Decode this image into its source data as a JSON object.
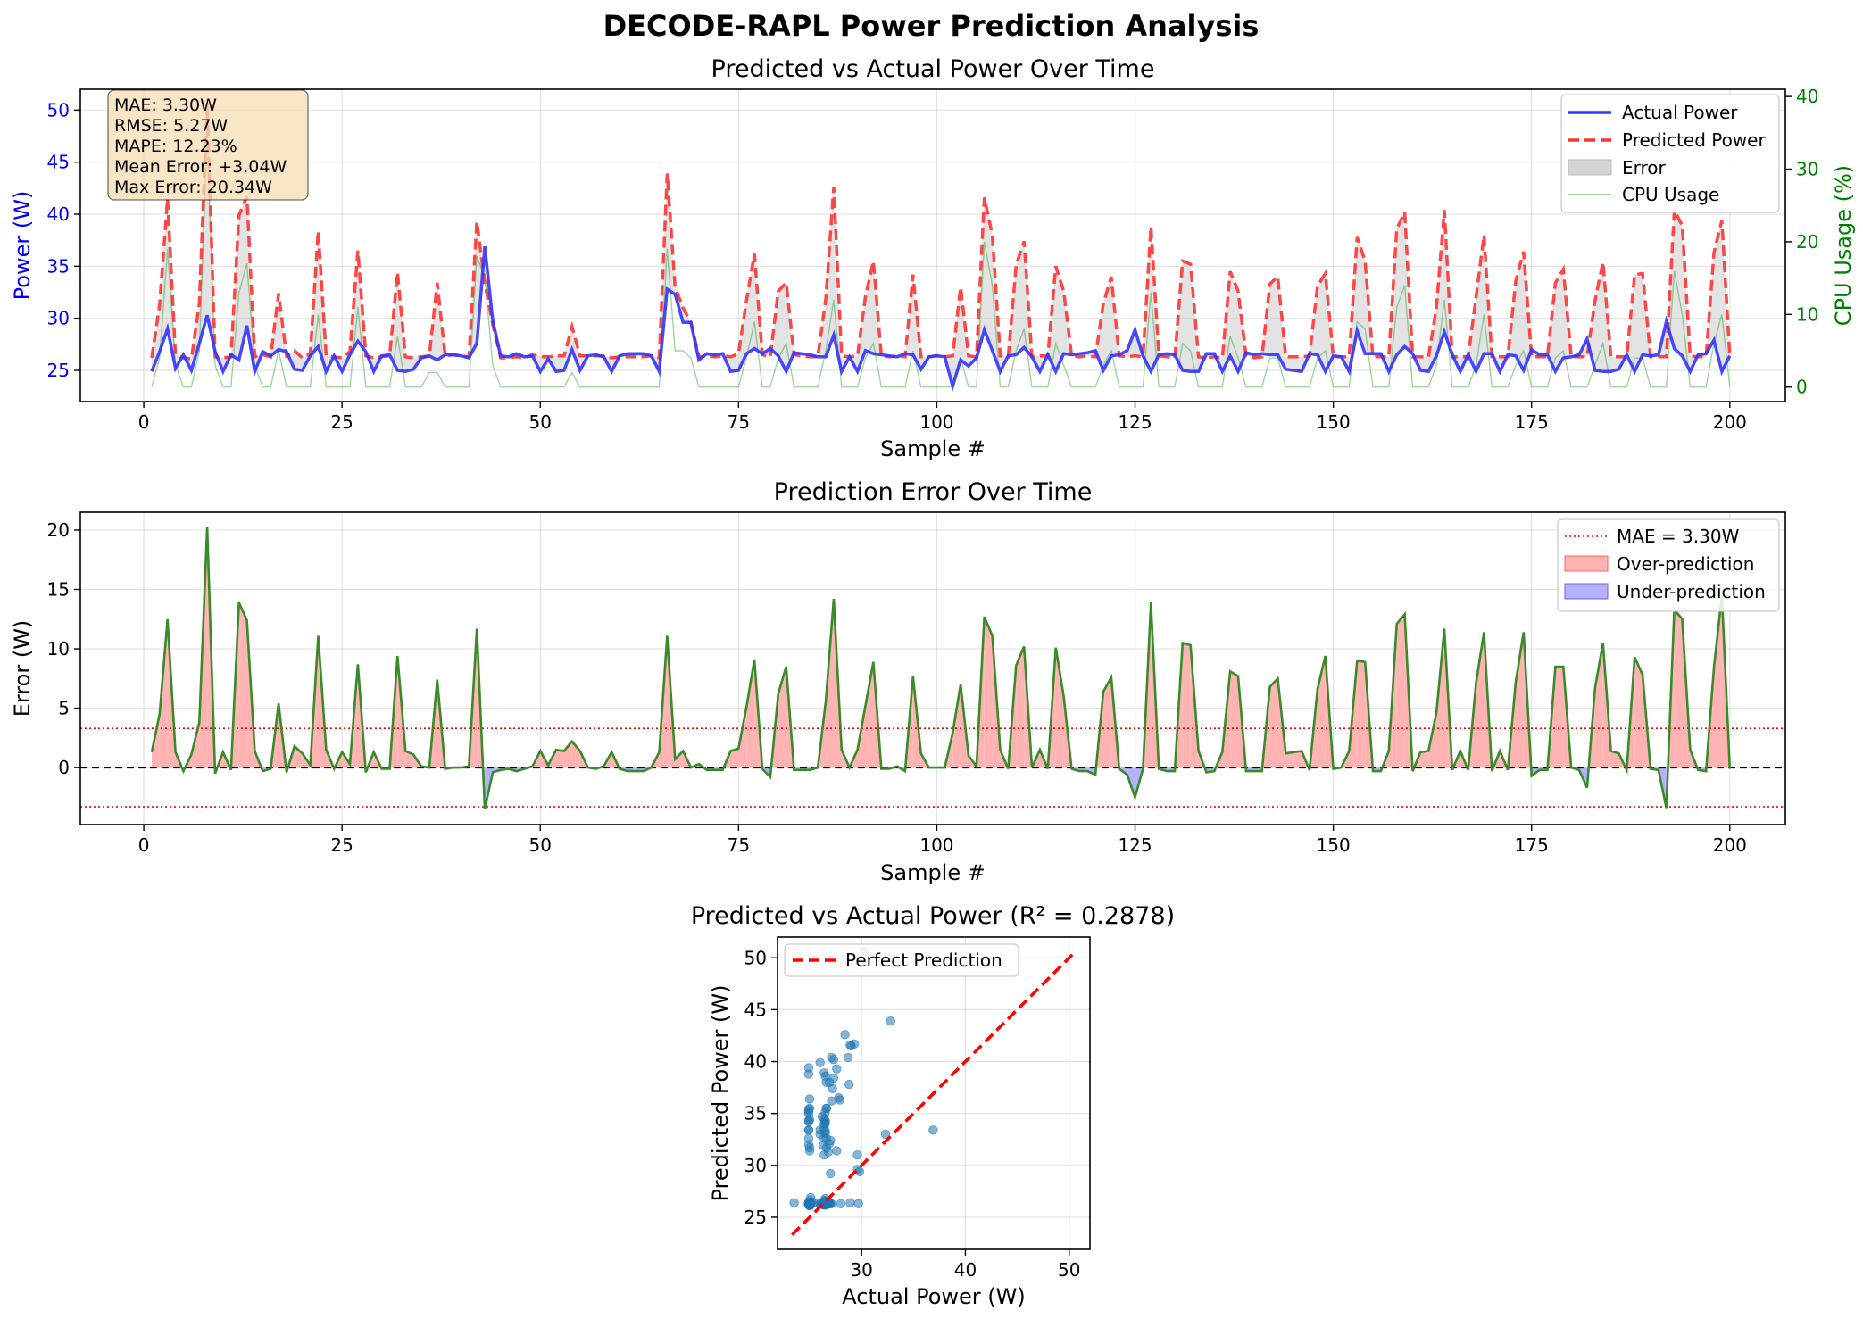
{
  "suptitle": "DECODE-RAPL Power Prediction Analysis",
  "colors": {
    "actual": "#3333ff",
    "predicted": "#ff3333",
    "cpu": "#2ca02c",
    "error_line": "#3a8a2a",
    "over_fill": "#ffb3b3",
    "under_fill": "#b3b3ff",
    "error_band": "#c8c8c8",
    "scatter": "#1f77b4",
    "stats_box": "#f5deb3",
    "left_axis": "#0000ff",
    "right_axis": "#008000"
  },
  "chart_data": [
    {
      "type": "line",
      "title": "Predicted vs Actual Power Over Time",
      "xlabel": "Sample #",
      "ylabel": "Power (W)",
      "y2label": "CPU Usage (%)",
      "xlim": [
        -8,
        207
      ],
      "ylim": [
        22,
        52
      ],
      "y2lim": [
        -2,
        41
      ],
      "xticks": [
        0,
        25,
        50,
        75,
        100,
        125,
        150,
        175,
        200
      ],
      "yticks": [
        25,
        30,
        35,
        40,
        45,
        50
      ],
      "y2ticks": [
        0,
        10,
        20,
        30,
        40
      ],
      "grid": true,
      "legend_position": "top-right",
      "legend": [
        "Actual Power",
        "Predicted Power",
        "Error",
        "CPU Usage"
      ],
      "stats_box": [
        "MAE: 3.30W",
        "RMSE: 5.27W",
        "MAPE: 12.23%",
        "Mean Error: +3.04W",
        "Max Error: 20.34W"
      ],
      "x_start": 1,
      "series": [
        {
          "name": "Actual Power",
          "values": [
            24.9,
            26.8,
            29.0,
            25.2,
            26.5,
            25.0,
            27.6,
            30.3,
            26.8,
            24.9,
            26.5,
            26.0,
            29.3,
            24.9,
            26.8,
            26.4,
            27.0,
            26.8,
            25.1,
            25.0,
            26.4,
            27.3,
            24.9,
            26.4,
            24.9,
            26.5,
            27.8,
            26.8,
            24.9,
            26.4,
            26.5,
            25.0,
            24.9,
            25.1,
            26.2,
            26.4,
            26.0,
            26.5,
            26.5,
            26.4,
            26.2,
            27.6,
            36.9,
            29.8,
            26.4,
            26.3,
            26.6,
            26.3,
            26.4,
            24.9,
            26.1,
            24.9,
            25.0,
            27.0,
            25.0,
            26.4,
            26.5,
            26.3,
            24.9,
            26.4,
            26.6,
            26.6,
            26.6,
            26.4,
            24.9,
            32.8,
            32.3,
            29.6,
            29.6,
            26.0,
            26.6,
            26.5,
            26.6,
            24.9,
            25.0,
            26.6,
            27.1,
            26.6,
            27.1,
            26.4,
            24.9,
            26.7,
            26.6,
            26.5,
            26.3,
            26.3,
            28.4,
            24.9,
            26.3,
            24.9,
            26.9,
            26.6,
            26.5,
            26.4,
            26.3,
            26.6,
            26.5,
            25.1,
            26.3,
            26.4,
            26.3,
            23.5,
            26.0,
            25.4,
            26.2,
            28.9,
            26.9,
            24.9,
            26.4,
            26.5,
            27.2,
            26.3,
            24.9,
            26.5,
            24.9,
            26.6,
            26.5,
            26.6,
            26.7,
            26.9,
            25.0,
            26.4,
            26.5,
            26.9,
            28.9,
            26.4,
            24.9,
            26.5,
            26.6,
            26.5,
            25.0,
            24.9,
            24.9,
            26.6,
            26.6,
            24.9,
            26.4,
            24.9,
            26.7,
            26.5,
            26.6,
            26.5,
            26.5,
            25.1,
            25.0,
            24.9,
            26.6,
            26.5,
            24.9,
            26.4,
            26.3,
            24.9,
            28.8,
            26.6,
            26.6,
            26.6,
            24.9,
            26.5,
            27.3,
            26.6,
            25.0,
            24.9,
            26.4,
            28.7,
            26.5,
            24.9,
            26.5,
            24.9,
            26.6,
            26.6,
            24.9,
            26.5,
            26.4,
            25.0,
            27.0,
            26.5,
            26.5,
            24.9,
            26.2,
            26.3,
            26.5,
            28.0,
            25.0,
            24.9,
            24.9,
            25.1,
            26.5,
            24.9,
            26.5,
            26.4,
            26.5,
            29.7,
            27.1,
            26.4,
            24.9,
            26.5,
            26.6,
            27.9,
            24.9,
            26.4
          ]
        },
        {
          "name": "Predicted Power",
          "values": [
            26.2,
            31.3,
            41.5,
            26.5,
            26.2,
            26.1,
            31.4,
            50.6,
            26.3,
            26.2,
            26.3,
            39.9,
            41.7,
            26.3,
            26.5,
            26.3,
            32.4,
            26.4,
            26.9,
            26.2,
            26.6,
            38.4,
            26.4,
            26.3,
            26.2,
            26.8,
            36.5,
            26.4,
            26.2,
            26.3,
            26.4,
            34.4,
            26.3,
            26.2,
            26.3,
            26.4,
            33.4,
            26.4,
            26.5,
            26.4,
            26.3,
            39.3,
            33.4,
            29.4,
            26.2,
            26.2,
            26.3,
            26.2,
            26.5,
            26.3,
            26.3,
            26.4,
            26.4,
            29.2,
            26.4,
            26.4,
            26.4,
            26.4,
            26.2,
            26.3,
            26.3,
            26.3,
            26.3,
            26.4,
            26.2,
            43.9,
            33.0,
            31.0,
            29.6,
            26.3,
            26.4,
            26.3,
            26.4,
            26.3,
            26.6,
            31.7,
            36.2,
            26.5,
            26.3,
            32.6,
            33.4,
            26.5,
            26.4,
            26.3,
            26.3,
            31.9,
            42.6,
            26.4,
            26.3,
            26.4,
            32.1,
            35.5,
            26.4,
            26.3,
            26.4,
            26.3,
            34.2,
            26.3,
            26.3,
            26.4,
            26.3,
            26.4,
            33.0,
            26.4,
            26.3,
            41.6,
            38.0,
            26.4,
            26.3,
            35.1,
            37.4,
            26.3,
            26.4,
            26.4,
            35.0,
            32.6,
            26.4,
            26.3,
            26.4,
            26.3,
            31.4,
            34.0,
            26.4,
            26.3,
            26.4,
            26.3,
            38.8,
            26.4,
            26.3,
            26.2,
            35.5,
            35.2,
            26.3,
            26.2,
            26.3,
            26.2,
            34.5,
            32.6,
            26.4,
            26.2,
            26.3,
            33.3,
            34.0,
            26.3,
            26.3,
            26.3,
            26.4,
            33.1,
            34.3,
            26.3,
            26.3,
            26.3,
            37.8,
            35.5,
            26.3,
            26.3,
            26.3,
            38.6,
            40.2,
            26.3,
            26.3,
            26.3,
            31.0,
            40.4,
            26.3,
            26.3,
            26.3,
            32.0,
            38.0,
            26.3,
            26.3,
            26.3,
            33.6,
            36.4,
            26.3,
            26.3,
            26.3,
            33.4,
            34.7,
            26.3,
            26.3,
            26.3,
            31.7,
            35.4,
            26.3,
            26.3,
            26.3,
            34.2,
            34.3,
            26.3,
            26.3,
            26.3,
            40.4,
            38.9,
            26.4,
            26.3,
            26.3,
            36.3,
            39.4,
            26.3
          ]
        },
        {
          "name": "CPU Usage",
          "axis": "right",
          "values": [
            0,
            4,
            19,
            3,
            0,
            0,
            5,
            35,
            3,
            0,
            0,
            13,
            17,
            3,
            0,
            0,
            5,
            0,
            0,
            0,
            0,
            10,
            0,
            0,
            0,
            0,
            11,
            0,
            0,
            0,
            0,
            7,
            0,
            0,
            0,
            2,
            2,
            0,
            0,
            0,
            0,
            18,
            15,
            3,
            0,
            0,
            0,
            0,
            0,
            0,
            0,
            0,
            0,
            2,
            0,
            0,
            0,
            0,
            0,
            0,
            0,
            0,
            0,
            0,
            0,
            19,
            5,
            5,
            4,
            0,
            0,
            0,
            0,
            0,
            0,
            4,
            9,
            0,
            0,
            4,
            6,
            0,
            0,
            0,
            0,
            5,
            12,
            0,
            0,
            0,
            4,
            6,
            0,
            0,
            0,
            0,
            5,
            0,
            0,
            0,
            0,
            0,
            4,
            0,
            0,
            20,
            14,
            0,
            0,
            5,
            8,
            0,
            0,
            0,
            6,
            3,
            0,
            0,
            0,
            0,
            3,
            5,
            0,
            0,
            0,
            0,
            13,
            0,
            0,
            0,
            6,
            5,
            0,
            0,
            0,
            0,
            7,
            4,
            0,
            0,
            0,
            4,
            4,
            0,
            0,
            0,
            0,
            4,
            5,
            0,
            0,
            0,
            9,
            8,
            0,
            0,
            0,
            11,
            14,
            0,
            0,
            0,
            3,
            12,
            0,
            0,
            0,
            3,
            10,
            0,
            0,
            0,
            3,
            5,
            0,
            0,
            0,
            4,
            5,
            0,
            0,
            0,
            3,
            6,
            0,
            0,
            0,
            4,
            4,
            0,
            0,
            0,
            16,
            10,
            0,
            0,
            0,
            6,
            10,
            0
          ]
        }
      ]
    },
    {
      "type": "area",
      "title": "Prediction Error Over Time",
      "xlabel": "Sample #",
      "ylabel": "Error (W)",
      "xlim": [
        -8,
        207
      ],
      "ylim": [
        -4.8,
        21.5
      ],
      "xticks": [
        0,
        25,
        50,
        75,
        100,
        125,
        150,
        175,
        200
      ],
      "yticks": [
        0,
        5,
        10,
        15,
        20
      ],
      "mae": 3.3,
      "grid": true,
      "legend_position": "top-right",
      "legend": [
        "MAE = 3.30W",
        "Over-prediction",
        "Under-prediction"
      ],
      "note": "error = predicted - actual for each sample, x from 1 to 198"
    },
    {
      "type": "scatter",
      "title": "Predicted vs Actual Power (R² = 0.2878)",
      "xlabel": "Actual Power (W)",
      "ylabel": "Predicted Power (W)",
      "xlim": [
        21.9,
        52.0
      ],
      "ylim": [
        21.9,
        52.0
      ],
      "xticks": [
        30,
        40,
        50
      ],
      "yticks": [
        25,
        30,
        35,
        40,
        45,
        50
      ],
      "grid": true,
      "legend_position": "top-left",
      "legend": [
        "Perfect Prediction"
      ],
      "diagonal": [
        23.3,
        50.6
      ]
    }
  ]
}
